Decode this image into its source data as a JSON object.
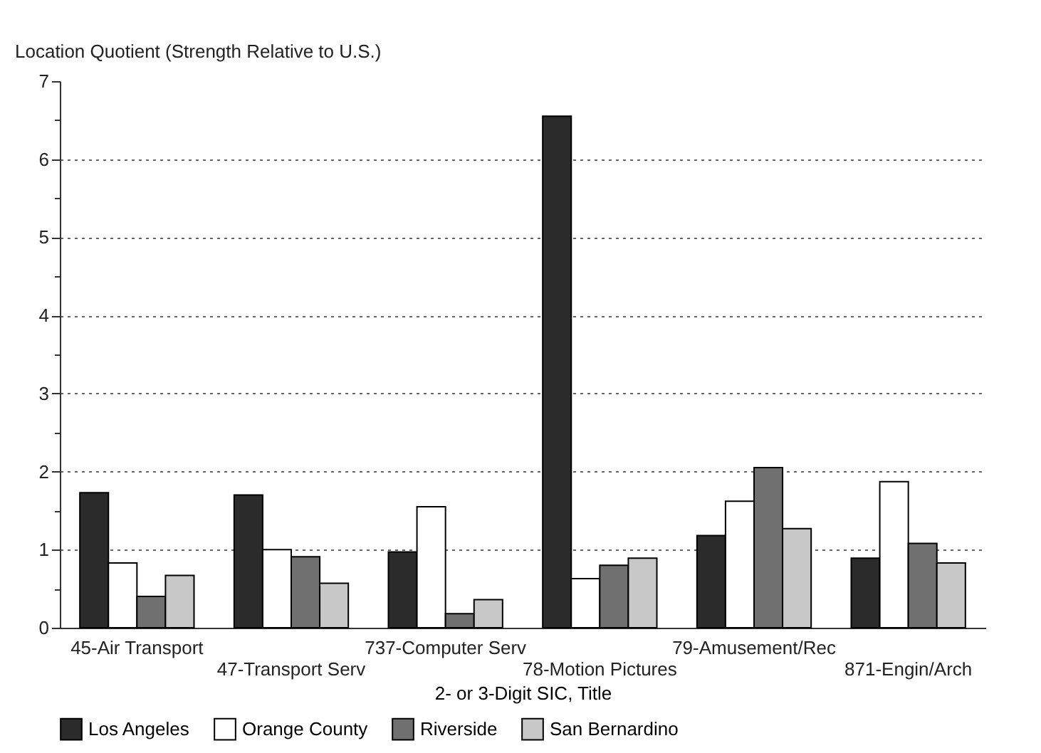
{
  "chart_data": {
    "type": "bar",
    "ylabel": "Location Quotient (Strength Relative to U.S.)",
    "xlabel": "2- or 3-Digit SIC, Title",
    "categories": [
      "45-Air Transport",
      "47-Transport Serv",
      "737-Computer Serv",
      "78-Motion Pictures",
      "79-Amusement/Rec",
      "871-Engin/Arch"
    ],
    "series": [
      {
        "name": "Los Angeles",
        "color": "#2b2b2b",
        "values": [
          1.73,
          1.7,
          0.97,
          6.55,
          1.18,
          0.89
        ]
      },
      {
        "name": "Orange County",
        "color": "#ffffff",
        "values": [
          0.83,
          1.0,
          1.55,
          0.63,
          1.62,
          1.87
        ]
      },
      {
        "name": "Riverside",
        "color": "#707070",
        "values": [
          0.4,
          0.91,
          0.18,
          0.8,
          2.05,
          1.08
        ]
      },
      {
        "name": "San Bernardino",
        "color": "#c8c8c8",
        "values": [
          0.67,
          0.57,
          0.36,
          0.89,
          1.27,
          0.83
        ]
      }
    ],
    "ylim": [
      0,
      7
    ],
    "yticks": [
      0,
      {
        "value": 0.5,
        "label": null
      },
      1,
      {
        "value": 1.5,
        "label": null
      },
      2,
      {
        "value": 2.5,
        "label": null
      },
      3,
      {
        "value": 3.5,
        "label": null
      },
      4,
      {
        "value": 4.5,
        "label": null
      },
      5,
      {
        "value": 5.5,
        "label": null
      },
      6,
      {
        "value": 6.5,
        "label": null
      },
      7
    ],
    "grid": "y",
    "legend": "bottom"
  }
}
